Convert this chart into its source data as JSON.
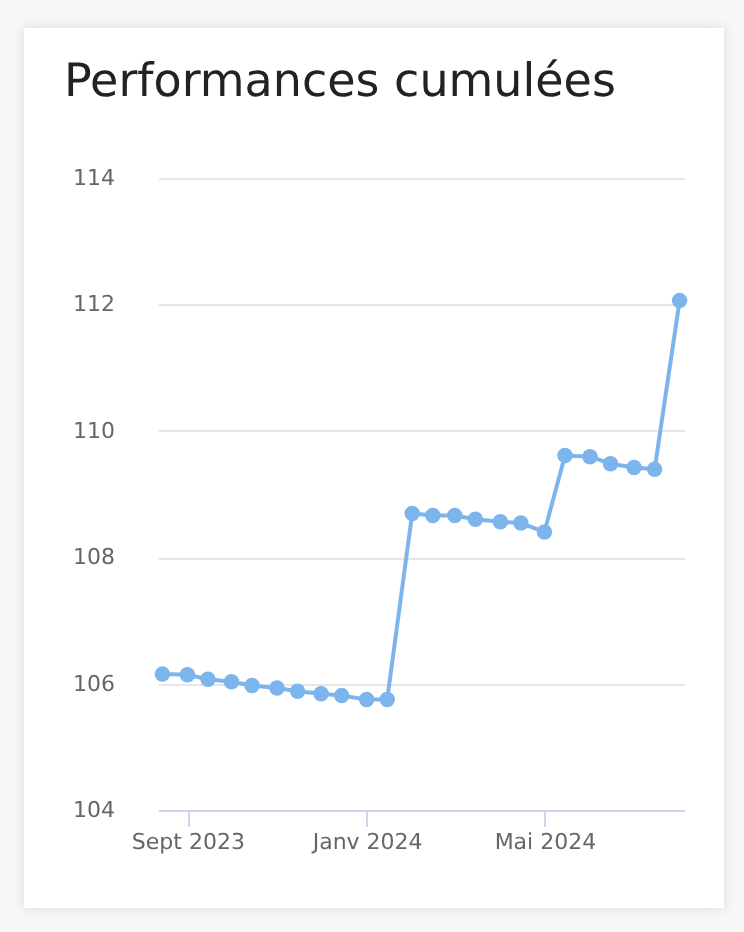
{
  "chart_data": {
    "type": "line",
    "title": "Performances cumulées",
    "x": [
      "2023-08-15",
      "2023-09-01",
      "2023-09-15",
      "2023-10-01",
      "2023-10-15",
      "2023-11-01",
      "2023-11-15",
      "2023-12-01",
      "2023-12-15",
      "2024-01-01",
      "2024-01-15",
      "2024-02-01",
      "2024-02-15",
      "2024-03-01",
      "2024-03-15",
      "2024-04-01",
      "2024-04-15",
      "2024-05-01",
      "2024-05-15",
      "2024-06-01",
      "2024-06-15",
      "2024-07-01",
      "2024-07-15",
      "2024-08-01"
    ],
    "series": [
      {
        "color": "#7cb5ec",
        "values": [
          106.15,
          106.14,
          106.07,
          106.03,
          105.97,
          105.93,
          105.88,
          105.84,
          105.81,
          105.75,
          105.75,
          108.69,
          108.66,
          108.66,
          108.6,
          108.56,
          108.54,
          108.4,
          109.61,
          109.59,
          109.48,
          109.42,
          109.39,
          112.06
        ]
      }
    ],
    "xlim": [
      "2023-08-12",
      "2024-08-04"
    ],
    "xticks": [
      {
        "value": "2023-09-01",
        "label": "Sept 2023"
      },
      {
        "value": "2024-01-01",
        "label": "Janv 2024"
      },
      {
        "value": "2024-05-01",
        "label": "Mai 2024"
      }
    ],
    "ylim": [
      104,
      114
    ],
    "yticks": [
      104,
      106,
      108,
      110,
      112,
      114
    ],
    "grid": "y",
    "marker": "circle",
    "line_style": "solid",
    "legend": false
  }
}
